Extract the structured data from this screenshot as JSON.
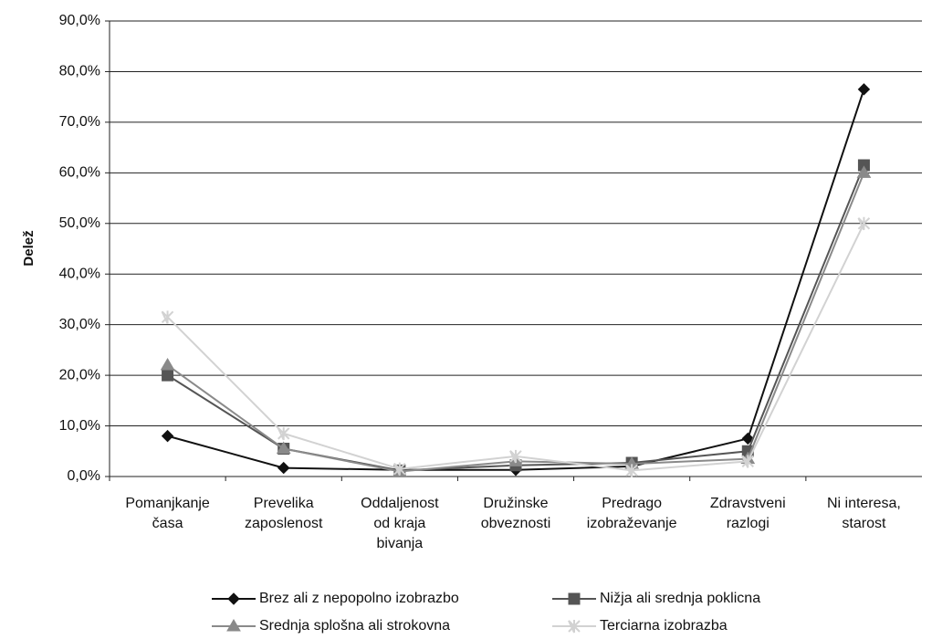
{
  "chart_data": {
    "type": "line",
    "ylabel": "Delež",
    "categories": [
      "Pomanjkanje\nčasa",
      "Prevelika\nzaposlenost",
      "Oddaljenost\nod kraja\nbivanja",
      "Družinske\nobveznosti",
      "Predrago\nizobraževanje",
      "Zdravstveni\nrazlogi",
      "Ni interesa,\nstarost"
    ],
    "series": [
      {
        "name": "Brez ali z nepopolno izobrazbo",
        "color": "#111111",
        "marker": "diamond",
        "values": [
          8.0,
          1.7,
          1.3,
          1.3,
          2.0,
          7.5,
          76.5
        ]
      },
      {
        "name": "Nižja ali srednja poklicna",
        "color": "#555555",
        "marker": "square",
        "values": [
          20.0,
          5.5,
          1.2,
          2.2,
          2.7,
          5.0,
          61.5
        ]
      },
      {
        "name": "Srednja splošna ali strokovna",
        "color": "#8a8a8a",
        "marker": "triangle",
        "values": [
          22.0,
          5.5,
          1.0,
          3.0,
          2.5,
          3.5,
          60.0
        ]
      },
      {
        "name": "Terciarna izobrazba",
        "color": "#d2d2d2",
        "marker": "star",
        "values": [
          31.5,
          8.5,
          1.5,
          4.0,
          1.2,
          3.0,
          50.0
        ]
      }
    ],
    "ylim": [
      0,
      90
    ],
    "yticks": [
      {
        "value": 0,
        "label": "0,0%"
      },
      {
        "value": 10,
        "label": "10,0%"
      },
      {
        "value": 20,
        "label": "20,0%"
      },
      {
        "value": 30,
        "label": "30,0%"
      },
      {
        "value": 40,
        "label": "40,0%"
      },
      {
        "value": 50,
        "label": "50,0%"
      },
      {
        "value": 60,
        "label": "60,0%"
      },
      {
        "value": 70,
        "label": "70,0%"
      },
      {
        "value": 80,
        "label": "80,0%"
      },
      {
        "value": 90,
        "label": "90,0%"
      }
    ],
    "grid": true,
    "legend": "bottom"
  }
}
